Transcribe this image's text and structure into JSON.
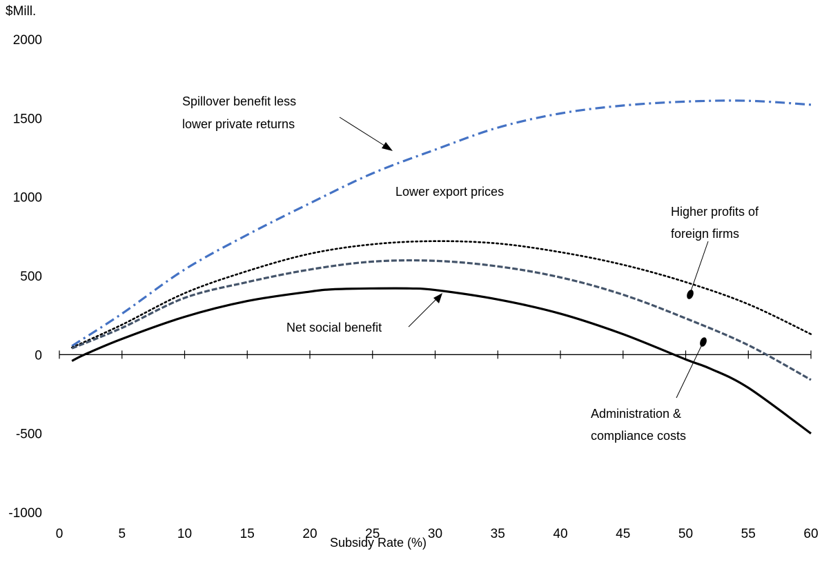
{
  "chart_data": {
    "type": "line",
    "title": "",
    "ylabel": "$Mill.",
    "xlabel": "Subsidy Rate (%)",
    "xlim": [
      0,
      60
    ],
    "ylim": [
      -1000,
      2000
    ],
    "xticks": [
      0,
      5,
      10,
      15,
      20,
      25,
      30,
      35,
      40,
      45,
      50,
      55,
      60
    ],
    "yticks": [
      2000,
      1500,
      1000,
      500,
      0,
      -500,
      -1000
    ],
    "grid": false,
    "series": [
      {
        "name": "Spillover benefit less lower private returns",
        "color": "#4472C4",
        "style": "dash-dot",
        "x": [
          1,
          5,
          10,
          15,
          20,
          25,
          30,
          35,
          40,
          45,
          50,
          55,
          60
        ],
        "y": [
          55,
          260,
          540,
          760,
          960,
          1150,
          1300,
          1440,
          1530,
          1580,
          1605,
          1610,
          1585
        ]
      },
      {
        "name": "Lower export prices",
        "color": "#000000",
        "style": "dotted",
        "x": [
          1,
          5,
          10,
          15,
          20,
          25,
          30,
          35,
          40,
          45,
          50,
          55,
          60
        ],
        "y": [
          45,
          190,
          390,
          530,
          640,
          700,
          720,
          705,
          650,
          570,
          460,
          320,
          130
        ]
      },
      {
        "name": "Higher profits of foreign firms",
        "color": "#44546A",
        "style": "dashed",
        "x": [
          1,
          5,
          10,
          15,
          20,
          25,
          30,
          35,
          40,
          45,
          50,
          55,
          60
        ],
        "y": [
          40,
          170,
          360,
          460,
          540,
          590,
          595,
          560,
          490,
          380,
          230,
          60,
          -160
        ]
      },
      {
        "name": "Net social benefit",
        "color": "#000000",
        "style": "solid",
        "x": [
          1,
          2,
          5,
          10,
          15,
          20,
          22,
          25,
          28,
          30,
          35,
          40,
          45,
          50,
          52,
          55,
          60
        ],
        "y": [
          -40,
          0,
          100,
          240,
          340,
          400,
          415,
          420,
          420,
          410,
          350,
          260,
          130,
          -30,
          -90,
          -210,
          -500
        ]
      }
    ],
    "annotations": [
      {
        "text": "Spillover benefit less",
        "x": 19,
        "y": 1605
      },
      {
        "text": "lower private returns",
        "x": 19,
        "y": 1500
      },
      {
        "text": "Lower export prices",
        "x": 32,
        "y": 1025
      },
      {
        "text": "Higher profits of",
        "x": 55,
        "y": 890
      },
      {
        "text": "foreign firms",
        "x": 55,
        "y": 785
      },
      {
        "text": "Net social benefit",
        "x": 25,
        "y": 170
      },
      {
        "text": "Administration &",
        "x": 52,
        "y": -365
      },
      {
        "text": "compliance costs",
        "x": 52,
        "y": -470
      }
    ]
  }
}
